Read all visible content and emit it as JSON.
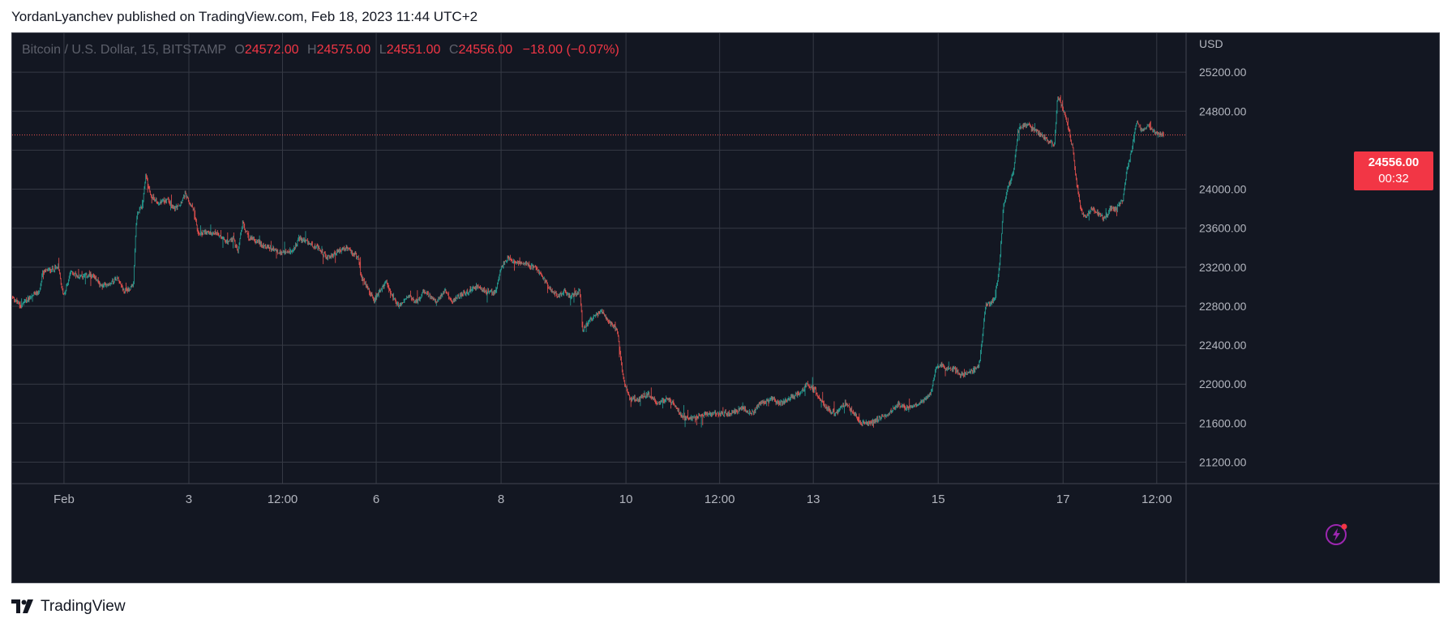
{
  "header": {
    "published": "YordanLyanchev published on TradingView.com, Feb 18, 2023 11:44 UTC+2"
  },
  "legend": {
    "symbol": "Bitcoin / U.S. Dollar, 15, BITSTAMP",
    "o_label": "O",
    "o_value": "24572.00",
    "h_label": "H",
    "h_value": "24575.00",
    "l_label": "L",
    "l_value": "24551.00",
    "c_label": "C",
    "c_value": "24556.00",
    "change": "−18.00 (−0.07%)"
  },
  "price_badge": {
    "price": "24556.00",
    "countdown": "00:32"
  },
  "footer": {
    "brand": "TradingView"
  },
  "colors": {
    "up": "#26a69a",
    "down": "#ef5350",
    "bg": "#131722",
    "grid": "#363a45",
    "text": "#b2b5be",
    "badge": "#f23645"
  },
  "icons": {
    "logo": "tradingview-logo-icon",
    "bolt": "lightning-bolt-icon"
  },
  "chart_data": {
    "type": "candlestick",
    "currency_label": "USD",
    "yticks": [
      21200,
      21600,
      22000,
      22400,
      22800,
      23200,
      23600,
      24000,
      24400,
      24800,
      25200
    ],
    "ytick_labels": [
      "21200.00",
      "21600.00",
      "22000.00",
      "22400.00",
      "22800.00",
      "23200.00",
      "23600.00",
      "24000.00",
      "",
      "24800.00",
      "25200.00"
    ],
    "ylim": [
      20980,
      25600
    ],
    "xlim": [
      0,
      18.8
    ],
    "xticks": [
      {
        "label": "Feb",
        "x": 0.83
      },
      {
        "label": "3",
        "x": 2.83
      },
      {
        "label": "12:00",
        "x": 4.33
      },
      {
        "label": "6",
        "x": 5.83
      },
      {
        "label": "8",
        "x": 7.83
      },
      {
        "label": "10",
        "x": 9.83
      },
      {
        "label": "12:00",
        "x": 11.33
      },
      {
        "label": "13",
        "x": 12.83
      },
      {
        "label": "15",
        "x": 14.83
      },
      {
        "label": "17",
        "x": 16.83
      },
      {
        "label": "12:00",
        "x": 18.33
      }
    ],
    "last_price": 24556,
    "path": [
      [
        0.0,
        22900
      ],
      [
        0.15,
        22800
      ],
      [
        0.3,
        22900
      ],
      [
        0.45,
        22950
      ],
      [
        0.5,
        23150
      ],
      [
        0.75,
        23200
      ],
      [
        0.83,
        22900
      ],
      [
        0.95,
        23150
      ],
      [
        1.1,
        23100
      ],
      [
        1.3,
        23120
      ],
      [
        1.45,
        23000
      ],
      [
        1.6,
        23050
      ],
      [
        1.7,
        23100
      ],
      [
        1.8,
        22950
      ],
      [
        1.95,
        23000
      ],
      [
        2.0,
        23700
      ],
      [
        2.05,
        23800
      ],
      [
        2.1,
        23850
      ],
      [
        2.15,
        24150
      ],
      [
        2.22,
        23950
      ],
      [
        2.35,
        23850
      ],
      [
        2.5,
        23900
      ],
      [
        2.6,
        23800
      ],
      [
        2.7,
        23850
      ],
      [
        2.78,
        23950
      ],
      [
        2.85,
        23850
      ],
      [
        2.92,
        23800
      ],
      [
        2.98,
        23550
      ],
      [
        3.1,
        23550
      ],
      [
        3.3,
        23550
      ],
      [
        3.45,
        23450
      ],
      [
        3.55,
        23500
      ],
      [
        3.62,
        23350
      ],
      [
        3.7,
        23650
      ],
      [
        3.8,
        23500
      ],
      [
        3.95,
        23450
      ],
      [
        4.1,
        23400
      ],
      [
        4.3,
        23350
      ],
      [
        4.5,
        23350
      ],
      [
        4.6,
        23500
      ],
      [
        4.75,
        23450
      ],
      [
        4.9,
        23400
      ],
      [
        5.05,
        23300
      ],
      [
        5.2,
        23350
      ],
      [
        5.35,
        23400
      ],
      [
        5.45,
        23350
      ],
      [
        5.55,
        23300
      ],
      [
        5.6,
        23100
      ],
      [
        5.7,
        23000
      ],
      [
        5.8,
        22850
      ],
      [
        5.9,
        22950
      ],
      [
        6.0,
        23050
      ],
      [
        6.1,
        22900
      ],
      [
        6.2,
        22800
      ],
      [
        6.35,
        22900
      ],
      [
        6.5,
        22850
      ],
      [
        6.6,
        22950
      ],
      [
        6.7,
        22900
      ],
      [
        6.8,
        22850
      ],
      [
        6.95,
        22950
      ],
      [
        7.05,
        22850
      ],
      [
        7.15,
        22900
      ],
      [
        7.3,
        22950
      ],
      [
        7.45,
        23000
      ],
      [
        7.6,
        22950
      ],
      [
        7.75,
        22950
      ],
      [
        7.85,
        23200
      ],
      [
        7.95,
        23300
      ],
      [
        8.05,
        23250
      ],
      [
        8.2,
        23250
      ],
      [
        8.35,
        23200
      ],
      [
        8.45,
        23150
      ],
      [
        8.55,
        23050
      ],
      [
        8.65,
        22950
      ],
      [
        8.75,
        22900
      ],
      [
        8.85,
        22950
      ],
      [
        8.95,
        22900
      ],
      [
        9.1,
        22950
      ],
      [
        9.15,
        22550
      ],
      [
        9.25,
        22650
      ],
      [
        9.35,
        22700
      ],
      [
        9.45,
        22750
      ],
      [
        9.55,
        22650
      ],
      [
        9.62,
        22600
      ],
      [
        9.7,
        22550
      ],
      [
        9.8,
        22050
      ],
      [
        9.9,
        21850
      ],
      [
        10.05,
        21850
      ],
      [
        10.2,
        21900
      ],
      [
        10.35,
        21800
      ],
      [
        10.5,
        21850
      ],
      [
        10.6,
        21800
      ],
      [
        10.7,
        21700
      ],
      [
        10.8,
        21650
      ],
      [
        10.95,
        21650
      ],
      [
        11.1,
        21700
      ],
      [
        11.3,
        21700
      ],
      [
        11.5,
        21700
      ],
      [
        11.7,
        21750
      ],
      [
        11.85,
        21700
      ],
      [
        12.0,
        21800
      ],
      [
        12.15,
        21850
      ],
      [
        12.3,
        21800
      ],
      [
        12.45,
        21850
      ],
      [
        12.6,
        21900
      ],
      [
        12.75,
        22000
      ],
      [
        12.85,
        21950
      ],
      [
        12.95,
        21850
      ],
      [
        13.05,
        21750
      ],
      [
        13.2,
        21700
      ],
      [
        13.35,
        21800
      ],
      [
        13.5,
        21700
      ],
      [
        13.6,
        21600
      ],
      [
        13.75,
        21600
      ],
      [
        13.9,
        21650
      ],
      [
        14.05,
        21700
      ],
      [
        14.2,
        21800
      ],
      [
        14.35,
        21750
      ],
      [
        14.5,
        21800
      ],
      [
        14.65,
        21850
      ],
      [
        14.72,
        21900
      ],
      [
        14.8,
        22150
      ],
      [
        14.9,
        22200
      ],
      [
        15.0,
        22150
      ],
      [
        15.1,
        22150
      ],
      [
        15.2,
        22100
      ],
      [
        15.3,
        22100
      ],
      [
        15.4,
        22150
      ],
      [
        15.5,
        22200
      ],
      [
        15.6,
        22800
      ],
      [
        15.7,
        22850
      ],
      [
        15.75,
        22900
      ],
      [
        15.82,
        23200
      ],
      [
        15.88,
        23800
      ],
      [
        15.95,
        24000
      ],
      [
        16.05,
        24200
      ],
      [
        16.12,
        24600
      ],
      [
        16.2,
        24650
      ],
      [
        16.3,
        24650
      ],
      [
        16.4,
        24600
      ],
      [
        16.5,
        24550
      ],
      [
        16.6,
        24500
      ],
      [
        16.7,
        24450
      ],
      [
        16.75,
        24950
      ],
      [
        16.82,
        24850
      ],
      [
        16.9,
        24700
      ],
      [
        17.0,
        24400
      ],
      [
        17.05,
        24100
      ],
      [
        17.12,
        23800
      ],
      [
        17.2,
        23700
      ],
      [
        17.3,
        23800
      ],
      [
        17.4,
        23750
      ],
      [
        17.5,
        23700
      ],
      [
        17.6,
        23800
      ],
      [
        17.7,
        23800
      ],
      [
        17.8,
        23900
      ],
      [
        17.85,
        24150
      ],
      [
        17.92,
        24350
      ],
      [
        17.97,
        24500
      ],
      [
        18.02,
        24700
      ],
      [
        18.1,
        24600
      ],
      [
        18.2,
        24650
      ],
      [
        18.3,
        24600
      ],
      [
        18.38,
        24560
      ],
      [
        18.45,
        24556
      ]
    ]
  }
}
